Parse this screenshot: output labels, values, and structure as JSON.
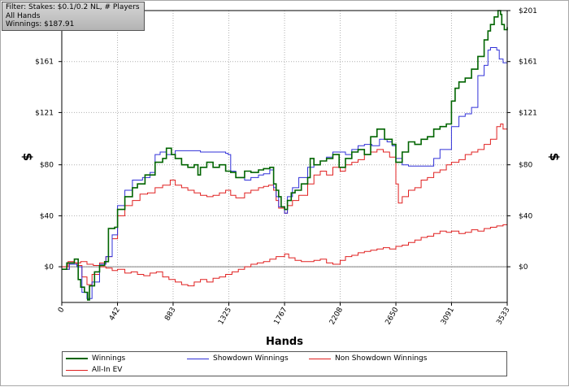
{
  "filter_box": {
    "lines": [
      "Filter: Stakes: $0.1/0.2 NL, # Players",
      "All Hands",
      "Winnings: $187.91"
    ]
  },
  "chart_data": {
    "type": "line",
    "xlabel": "Hands",
    "ylabel": "$",
    "xlim": [
      0,
      3533
    ],
    "ylim": [
      -28,
      201
    ],
    "x_ticks": [
      0,
      442,
      883,
      1325,
      1767,
      2208,
      2650,
      3091,
      3533
    ],
    "y_ticks": [
      0,
      40,
      80,
      121,
      161,
      201
    ],
    "y_tick_labels": [
      "$0",
      "$40",
      "$80",
      "$121",
      "$161",
      "$201"
    ],
    "grid": true,
    "legend_position": "bottom",
    "series": [
      {
        "name": "Winnings",
        "color": "#006400",
        "points": [
          [
            0,
            -2
          ],
          [
            40,
            3
          ],
          [
            100,
            6
          ],
          [
            130,
            -10
          ],
          [
            150,
            -16
          ],
          [
            180,
            -20
          ],
          [
            205,
            -26
          ],
          [
            220,
            -15
          ],
          [
            260,
            -4
          ],
          [
            300,
            1
          ],
          [
            340,
            4
          ],
          [
            370,
            30
          ],
          [
            420,
            31
          ],
          [
            442,
            45
          ],
          [
            500,
            55
          ],
          [
            560,
            62
          ],
          [
            600,
            65
          ],
          [
            660,
            72
          ],
          [
            700,
            72
          ],
          [
            740,
            82
          ],
          [
            800,
            85
          ],
          [
            830,
            93
          ],
          [
            870,
            88
          ],
          [
            900,
            85
          ],
          [
            950,
            80
          ],
          [
            1000,
            78
          ],
          [
            1050,
            80
          ],
          [
            1080,
            72
          ],
          [
            1100,
            78
          ],
          [
            1150,
            82
          ],
          [
            1200,
            78
          ],
          [
            1250,
            80
          ],
          [
            1300,
            75
          ],
          [
            1340,
            74
          ],
          [
            1380,
            70
          ],
          [
            1450,
            75
          ],
          [
            1500,
            74
          ],
          [
            1560,
            76
          ],
          [
            1600,
            77
          ],
          [
            1650,
            78
          ],
          [
            1680,
            65
          ],
          [
            1700,
            60
          ],
          [
            1720,
            55
          ],
          [
            1740,
            47
          ],
          [
            1767,
            45
          ],
          [
            1790,
            52
          ],
          [
            1820,
            58
          ],
          [
            1850,
            60
          ],
          [
            1900,
            65
          ],
          [
            1950,
            70
          ],
          [
            1970,
            85
          ],
          [
            2000,
            80
          ],
          [
            2050,
            83
          ],
          [
            2100,
            85
          ],
          [
            2150,
            88
          ],
          [
            2200,
            78
          ],
          [
            2250,
            85
          ],
          [
            2300,
            90
          ],
          [
            2350,
            92
          ],
          [
            2400,
            88
          ],
          [
            2450,
            102
          ],
          [
            2500,
            108
          ],
          [
            2560,
            100
          ],
          [
            2620,
            96
          ],
          [
            2650,
            82
          ],
          [
            2700,
            90
          ],
          [
            2750,
            98
          ],
          [
            2800,
            96
          ],
          [
            2850,
            100
          ],
          [
            2900,
            102
          ],
          [
            2950,
            108
          ],
          [
            3000,
            110
          ],
          [
            3050,
            112
          ],
          [
            3091,
            130
          ],
          [
            3120,
            140
          ],
          [
            3150,
            145
          ],
          [
            3200,
            148
          ],
          [
            3250,
            155
          ],
          [
            3300,
            165
          ],
          [
            3350,
            178
          ],
          [
            3380,
            185
          ],
          [
            3400,
            190
          ],
          [
            3430,
            196
          ],
          [
            3460,
            201
          ],
          [
            3480,
            198
          ],
          [
            3490,
            190
          ],
          [
            3510,
            186
          ],
          [
            3533,
            188
          ]
        ]
      },
      {
        "name": "Showdown Winnings",
        "color": "#3030d8",
        "points": [
          [
            0,
            -2
          ],
          [
            60,
            2
          ],
          [
            120,
            0
          ],
          [
            160,
            -20
          ],
          [
            200,
            -25
          ],
          [
            240,
            -12
          ],
          [
            300,
            2
          ],
          [
            350,
            8
          ],
          [
            400,
            25
          ],
          [
            442,
            48
          ],
          [
            500,
            60
          ],
          [
            560,
            68
          ],
          [
            640,
            70
          ],
          [
            700,
            74
          ],
          [
            740,
            88
          ],
          [
            780,
            90
          ],
          [
            830,
            88
          ],
          [
            900,
            91
          ],
          [
            1000,
            91
          ],
          [
            1100,
            90
          ],
          [
            1200,
            90
          ],
          [
            1300,
            89
          ],
          [
            1320,
            88
          ],
          [
            1340,
            75
          ],
          [
            1380,
            70
          ],
          [
            1450,
            68
          ],
          [
            1500,
            70
          ],
          [
            1560,
            72
          ],
          [
            1600,
            73
          ],
          [
            1650,
            76
          ],
          [
            1680,
            62
          ],
          [
            1700,
            55
          ],
          [
            1720,
            47
          ],
          [
            1767,
            42
          ],
          [
            1790,
            55
          ],
          [
            1830,
            62
          ],
          [
            1880,
            70
          ],
          [
            1950,
            78
          ],
          [
            2000,
            80
          ],
          [
            2050,
            83
          ],
          [
            2100,
            86
          ],
          [
            2150,
            90
          ],
          [
            2200,
            90
          ],
          [
            2250,
            88
          ],
          [
            2300,
            92
          ],
          [
            2350,
            95
          ],
          [
            2400,
            96
          ],
          [
            2460,
            95
          ],
          [
            2520,
            100
          ],
          [
            2580,
            98
          ],
          [
            2620,
            95
          ],
          [
            2650,
            85
          ],
          [
            2700,
            80
          ],
          [
            2750,
            79
          ],
          [
            2850,
            79
          ],
          [
            2950,
            85
          ],
          [
            3000,
            92
          ],
          [
            3091,
            110
          ],
          [
            3150,
            118
          ],
          [
            3200,
            120
          ],
          [
            3250,
            125
          ],
          [
            3300,
            150
          ],
          [
            3350,
            158
          ],
          [
            3380,
            170
          ],
          [
            3400,
            172
          ],
          [
            3450,
            170
          ],
          [
            3470,
            163
          ],
          [
            3500,
            160
          ],
          [
            3533,
            152
          ]
        ]
      },
      {
        "name": "Non Showdown Winnings",
        "color": "#e02020",
        "points": [
          [
            0,
            0
          ],
          [
            50,
            4
          ],
          [
            100,
            3
          ],
          [
            150,
            4
          ],
          [
            200,
            2
          ],
          [
            250,
            1
          ],
          [
            300,
            0
          ],
          [
            350,
            -1
          ],
          [
            400,
            -3
          ],
          [
            442,
            -2
          ],
          [
            500,
            -5
          ],
          [
            550,
            -4
          ],
          [
            600,
            -6
          ],
          [
            650,
            -7
          ],
          [
            700,
            -5
          ],
          [
            750,
            -4
          ],
          [
            800,
            -8
          ],
          [
            850,
            -10
          ],
          [
            900,
            -12
          ],
          [
            950,
            -14
          ],
          [
            1000,
            -15
          ],
          [
            1050,
            -12
          ],
          [
            1100,
            -10
          ],
          [
            1150,
            -12
          ],
          [
            1200,
            -9
          ],
          [
            1250,
            -8
          ],
          [
            1300,
            -6
          ],
          [
            1350,
            -4
          ],
          [
            1400,
            -2
          ],
          [
            1450,
            0
          ],
          [
            1500,
            2
          ],
          [
            1550,
            3
          ],
          [
            1600,
            4
          ],
          [
            1650,
            6
          ],
          [
            1700,
            8
          ],
          [
            1767,
            10
          ],
          [
            1800,
            7
          ],
          [
            1850,
            5
          ],
          [
            1900,
            4
          ],
          [
            1950,
            4
          ],
          [
            2000,
            5
          ],
          [
            2050,
            6
          ],
          [
            2100,
            3
          ],
          [
            2150,
            2
          ],
          [
            2208,
            5
          ],
          [
            2250,
            8
          ],
          [
            2300,
            9
          ],
          [
            2350,
            11
          ],
          [
            2400,
            12
          ],
          [
            2450,
            13
          ],
          [
            2500,
            14
          ],
          [
            2550,
            15
          ],
          [
            2600,
            14
          ],
          [
            2650,
            16
          ],
          [
            2700,
            17
          ],
          [
            2750,
            19
          ],
          [
            2800,
            21
          ],
          [
            2850,
            23
          ],
          [
            2900,
            24
          ],
          [
            2950,
            26
          ],
          [
            3000,
            28
          ],
          [
            3050,
            27
          ],
          [
            3091,
            28
          ],
          [
            3150,
            26
          ],
          [
            3200,
            27
          ],
          [
            3250,
            29
          ],
          [
            3300,
            28
          ],
          [
            3350,
            30
          ],
          [
            3400,
            31
          ],
          [
            3450,
            32
          ],
          [
            3500,
            33
          ],
          [
            3533,
            35
          ]
        ]
      },
      {
        "name": "All-In EV",
        "color": "#e02020",
        "points": [
          [
            0,
            -2
          ],
          [
            60,
            3
          ],
          [
            120,
            1
          ],
          [
            160,
            -8
          ],
          [
            200,
            -14
          ],
          [
            240,
            -6
          ],
          [
            300,
            3
          ],
          [
            350,
            8
          ],
          [
            400,
            22
          ],
          [
            442,
            40
          ],
          [
            500,
            48
          ],
          [
            560,
            52
          ],
          [
            620,
            57
          ],
          [
            680,
            58
          ],
          [
            740,
            62
          ],
          [
            800,
            64
          ],
          [
            860,
            68
          ],
          [
            900,
            64
          ],
          [
            950,
            62
          ],
          [
            1000,
            60
          ],
          [
            1050,
            58
          ],
          [
            1100,
            56
          ],
          [
            1150,
            55
          ],
          [
            1200,
            56
          ],
          [
            1250,
            58
          ],
          [
            1300,
            60
          ],
          [
            1340,
            56
          ],
          [
            1380,
            54
          ],
          [
            1450,
            58
          ],
          [
            1500,
            60
          ],
          [
            1560,
            62
          ],
          [
            1600,
            63
          ],
          [
            1640,
            64
          ],
          [
            1680,
            60
          ],
          [
            1700,
            52
          ],
          [
            1720,
            46
          ],
          [
            1767,
            42
          ],
          [
            1790,
            48
          ],
          [
            1830,
            52
          ],
          [
            1880,
            56
          ],
          [
            1950,
            65
          ],
          [
            2000,
            72
          ],
          [
            2050,
            75
          ],
          [
            2100,
            72
          ],
          [
            2150,
            78
          ],
          [
            2208,
            75
          ],
          [
            2250,
            80
          ],
          [
            2300,
            82
          ],
          [
            2350,
            84
          ],
          [
            2400,
            88
          ],
          [
            2450,
            90
          ],
          [
            2500,
            92
          ],
          [
            2550,
            90
          ],
          [
            2600,
            86
          ],
          [
            2650,
            65
          ],
          [
            2670,
            50
          ],
          [
            2700,
            55
          ],
          [
            2750,
            60
          ],
          [
            2800,
            62
          ],
          [
            2850,
            68
          ],
          [
            2900,
            70
          ],
          [
            2950,
            74
          ],
          [
            3000,
            76
          ],
          [
            3050,
            80
          ],
          [
            3091,
            82
          ],
          [
            3150,
            84
          ],
          [
            3200,
            88
          ],
          [
            3250,
            90
          ],
          [
            3300,
            92
          ],
          [
            3350,
            96
          ],
          [
            3400,
            100
          ],
          [
            3450,
            110
          ],
          [
            3480,
            112
          ],
          [
            3500,
            108
          ],
          [
            3533,
            104
          ]
        ]
      }
    ]
  },
  "legend": {
    "items": [
      {
        "label": "Winnings",
        "color": "#006400"
      },
      {
        "label": "Showdown Winnings",
        "color": "#3030d8"
      },
      {
        "label": "Non Showdown Winnings",
        "color": "#e02020"
      },
      {
        "label": "All-In EV",
        "color": "#e02020"
      }
    ]
  }
}
